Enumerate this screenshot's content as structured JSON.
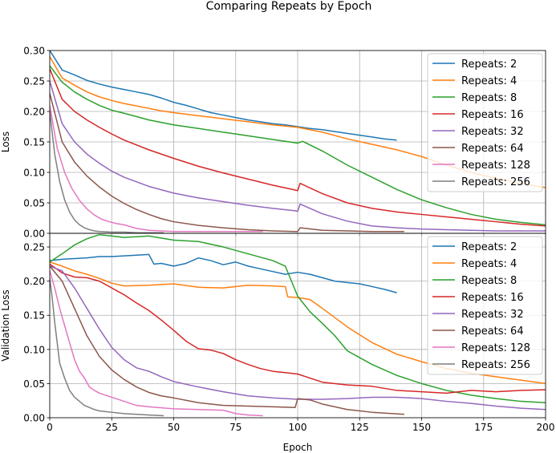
{
  "chart_data": [
    {
      "type": "line",
      "title": "Comparing Repeats by Epoch",
      "xlabel": "",
      "ylabel": "Loss",
      "xlim": [
        0,
        200
      ],
      "ylim": [
        0,
        0.3
      ],
      "xticks": [
        0,
        25,
        50,
        75,
        100,
        125,
        150,
        175,
        200
      ],
      "yticks": [
        0.0,
        0.05,
        0.1,
        0.15,
        0.2,
        0.25,
        0.3
      ],
      "ytick_labels": [
        "0.00",
        "0.05",
        "0.10",
        "0.15",
        "0.20",
        "0.25",
        "0.30"
      ],
      "grid": true,
      "legend_position": "top-right",
      "series": [
        {
          "name": "Repeats: 2",
          "color": "#1f77b4",
          "x": [
            0,
            5,
            10,
            15,
            20,
            25,
            30,
            35,
            40,
            45,
            50,
            55,
            60,
            65,
            70,
            75,
            80,
            85,
            90,
            95,
            100,
            105,
            110,
            115,
            120,
            125,
            130,
            135,
            140
          ],
          "values": [
            0.3,
            0.268,
            0.26,
            0.251,
            0.245,
            0.24,
            0.236,
            0.232,
            0.228,
            0.222,
            0.215,
            0.21,
            0.204,
            0.198,
            0.194,
            0.19,
            0.186,
            0.183,
            0.18,
            0.178,
            0.175,
            0.172,
            0.17,
            0.167,
            0.164,
            0.161,
            0.158,
            0.155,
            0.153
          ]
        },
        {
          "name": "Repeats: 4",
          "color": "#ff7f0e",
          "x": [
            0,
            5,
            10,
            15,
            20,
            25,
            30,
            35,
            40,
            45,
            50,
            60,
            70,
            80,
            90,
            100,
            110,
            120,
            130,
            140,
            150,
            160,
            170,
            180,
            190,
            200
          ],
          "values": [
            0.29,
            0.255,
            0.243,
            0.232,
            0.224,
            0.218,
            0.213,
            0.209,
            0.205,
            0.201,
            0.198,
            0.193,
            0.188,
            0.183,
            0.178,
            0.174,
            0.166,
            0.155,
            0.146,
            0.137,
            0.126,
            0.112,
            0.1,
            0.09,
            0.082,
            0.075
          ]
        },
        {
          "name": "Repeats: 8",
          "color": "#2ca02c",
          "x": [
            0,
            5,
            10,
            15,
            20,
            25,
            30,
            40,
            50,
            60,
            70,
            80,
            90,
            100,
            102,
            110,
            120,
            130,
            140,
            150,
            160,
            170,
            180,
            190,
            200
          ],
          "values": [
            0.275,
            0.248,
            0.232,
            0.22,
            0.21,
            0.202,
            0.197,
            0.186,
            0.178,
            0.172,
            0.166,
            0.16,
            0.154,
            0.148,
            0.151,
            0.135,
            0.112,
            0.092,
            0.072,
            0.055,
            0.042,
            0.031,
            0.023,
            0.018,
            0.014
          ]
        },
        {
          "name": "Repeats: 16",
          "color": "#d62728",
          "x": [
            0,
            5,
            10,
            15,
            20,
            25,
            30,
            40,
            50,
            60,
            70,
            80,
            90,
            99,
            100,
            101,
            110,
            120,
            130,
            140,
            150,
            160,
            170,
            180,
            190,
            200
          ],
          "values": [
            0.27,
            0.22,
            0.2,
            0.186,
            0.174,
            0.163,
            0.153,
            0.137,
            0.123,
            0.11,
            0.099,
            0.089,
            0.079,
            0.071,
            0.07,
            0.082,
            0.065,
            0.05,
            0.041,
            0.035,
            0.031,
            0.027,
            0.023,
            0.019,
            0.015,
            0.012
          ]
        },
        {
          "name": "Repeats: 32",
          "color": "#9467bd",
          "x": [
            0,
            5,
            10,
            15,
            20,
            25,
            30,
            40,
            50,
            60,
            70,
            80,
            90,
            99,
            100,
            101,
            110,
            120,
            130,
            140,
            150,
            160,
            170,
            180,
            190,
            200
          ],
          "values": [
            0.25,
            0.18,
            0.15,
            0.13,
            0.115,
            0.102,
            0.092,
            0.077,
            0.066,
            0.058,
            0.052,
            0.046,
            0.041,
            0.037,
            0.036,
            0.048,
            0.032,
            0.02,
            0.012,
            0.009,
            0.007,
            0.006,
            0.005,
            0.004,
            0.004,
            0.004
          ]
        },
        {
          "name": "Repeats: 64",
          "color": "#8c564b",
          "x": [
            0,
            5,
            10,
            15,
            20,
            25,
            30,
            35,
            40,
            45,
            50,
            60,
            70,
            80,
            90,
            99,
            100,
            101,
            110,
            120,
            130,
            143
          ],
          "values": [
            0.23,
            0.15,
            0.117,
            0.094,
            0.076,
            0.061,
            0.049,
            0.039,
            0.031,
            0.024,
            0.019,
            0.013,
            0.009,
            0.006,
            0.004,
            0.003,
            0.003,
            0.009,
            0.005,
            0.004,
            0.003,
            0.003
          ]
        },
        {
          "name": "Repeats: 128",
          "color": "#e377c2",
          "x": [
            0,
            3,
            6,
            9,
            12,
            15,
            18,
            21,
            24,
            27,
            30,
            35,
            40,
            45,
            50,
            60,
            65,
            70,
            86
          ],
          "values": [
            0.21,
            0.14,
            0.1,
            0.073,
            0.054,
            0.04,
            0.03,
            0.023,
            0.019,
            0.016,
            0.014,
            0.008,
            0.005,
            0.004,
            0.003,
            0.003,
            0.003,
            0.003,
            0.003
          ]
        },
        {
          "name": "Repeats: 256",
          "color": "#7f7f7f",
          "x": [
            0,
            2,
            4,
            6,
            8,
            10,
            12,
            14,
            16,
            18,
            20,
            25,
            30,
            35,
            40,
            46
          ],
          "values": [
            0.2,
            0.13,
            0.085,
            0.055,
            0.035,
            0.022,
            0.014,
            0.009,
            0.006,
            0.004,
            0.003,
            0.002,
            0.002,
            0.001,
            0.001,
            0.001
          ]
        }
      ]
    },
    {
      "type": "line",
      "title": "",
      "xlabel": "Epoch",
      "ylabel": "Validation Loss",
      "xlim": [
        0,
        200
      ],
      "ylim": [
        0,
        0.27
      ],
      "xticks": [
        0,
        25,
        50,
        75,
        100,
        125,
        150,
        175,
        200
      ],
      "yticks": [
        0.0,
        0.05,
        0.1,
        0.15,
        0.2,
        0.25
      ],
      "ytick_labels": [
        "0.00",
        "0.05",
        "0.10",
        "0.15",
        "0.20",
        "0.25"
      ],
      "grid": true,
      "legend_position": "top-right",
      "series": [
        {
          "name": "Repeats: 2",
          "color": "#1f77b4",
          "x": [
            0,
            5,
            10,
            15,
            20,
            25,
            30,
            35,
            40,
            42,
            45,
            50,
            55,
            60,
            65,
            70,
            75,
            80,
            85,
            90,
            95,
            100,
            105,
            110,
            115,
            120,
            125,
            130,
            135,
            140
          ],
          "values": [
            0.23,
            0.232,
            0.233,
            0.234,
            0.236,
            0.236,
            0.237,
            0.238,
            0.239,
            0.225,
            0.226,
            0.222,
            0.226,
            0.234,
            0.23,
            0.224,
            0.228,
            0.222,
            0.218,
            0.214,
            0.21,
            0.213,
            0.21,
            0.205,
            0.2,
            0.198,
            0.196,
            0.192,
            0.188,
            0.183
          ]
        },
        {
          "name": "Repeats: 4",
          "color": "#ff7f0e",
          "x": [
            0,
            5,
            10,
            15,
            20,
            25,
            30,
            40,
            50,
            60,
            70,
            80,
            90,
            95,
            96,
            100,
            105,
            110,
            120,
            130,
            140,
            150,
            160,
            170,
            180,
            190,
            200
          ],
          "values": [
            0.228,
            0.222,
            0.215,
            0.21,
            0.204,
            0.197,
            0.193,
            0.194,
            0.196,
            0.191,
            0.19,
            0.194,
            0.193,
            0.192,
            0.177,
            0.176,
            0.173,
            0.16,
            0.133,
            0.11,
            0.093,
            0.082,
            0.072,
            0.065,
            0.06,
            0.055,
            0.05
          ]
        },
        {
          "name": "Repeats: 8",
          "color": "#2ca02c",
          "x": [
            0,
            5,
            10,
            15,
            20,
            25,
            30,
            40,
            50,
            60,
            70,
            80,
            90,
            95,
            100,
            105,
            110,
            115,
            120,
            130,
            140,
            150,
            160,
            170,
            180,
            190,
            200
          ],
          "values": [
            0.228,
            0.24,
            0.253,
            0.262,
            0.268,
            0.266,
            0.264,
            0.266,
            0.26,
            0.258,
            0.25,
            0.24,
            0.23,
            0.222,
            0.178,
            0.155,
            0.138,
            0.12,
            0.098,
            0.078,
            0.062,
            0.05,
            0.04,
            0.033,
            0.028,
            0.024,
            0.022
          ]
        },
        {
          "name": "Repeats: 16",
          "color": "#d62728",
          "x": [
            0,
            5,
            10,
            15,
            20,
            25,
            30,
            35,
            40,
            45,
            50,
            55,
            60,
            65,
            70,
            75,
            80,
            85,
            90,
            95,
            100,
            110,
            120,
            130,
            140,
            150,
            160,
            170,
            180,
            190,
            200
          ],
          "values": [
            0.225,
            0.212,
            0.206,
            0.205,
            0.2,
            0.19,
            0.18,
            0.168,
            0.157,
            0.143,
            0.128,
            0.112,
            0.101,
            0.099,
            0.094,
            0.085,
            0.078,
            0.072,
            0.068,
            0.066,
            0.064,
            0.052,
            0.048,
            0.046,
            0.04,
            0.038,
            0.036,
            0.04,
            0.038,
            0.04,
            0.041
          ]
        },
        {
          "name": "Repeats: 32",
          "color": "#9467bd",
          "x": [
            0,
            5,
            10,
            15,
            20,
            25,
            30,
            35,
            40,
            45,
            50,
            60,
            70,
            80,
            90,
            100,
            110,
            120,
            130,
            140,
            150,
            160,
            170,
            180,
            190,
            200
          ],
          "values": [
            0.222,
            0.215,
            0.19,
            0.16,
            0.13,
            0.103,
            0.085,
            0.073,
            0.068,
            0.06,
            0.053,
            0.045,
            0.038,
            0.032,
            0.029,
            0.027,
            0.027,
            0.028,
            0.03,
            0.03,
            0.028,
            0.024,
            0.021,
            0.017,
            0.014,
            0.012
          ]
        },
        {
          "name": "Repeats: 64",
          "color": "#8c564b",
          "x": [
            0,
            5,
            10,
            15,
            20,
            25,
            30,
            35,
            40,
            45,
            50,
            60,
            70,
            80,
            90,
            99,
            100,
            105,
            110,
            120,
            130,
            143
          ],
          "values": [
            0.222,
            0.2,
            0.16,
            0.12,
            0.09,
            0.07,
            0.056,
            0.045,
            0.037,
            0.032,
            0.029,
            0.022,
            0.018,
            0.017,
            0.016,
            0.015,
            0.028,
            0.026,
            0.02,
            0.012,
            0.008,
            0.005
          ]
        },
        {
          "name": "Repeats: 128",
          "color": "#e377c2",
          "x": [
            0,
            2,
            4,
            6,
            8,
            10,
            12,
            14,
            16,
            18,
            20,
            25,
            30,
            35,
            40,
            50,
            60,
            70,
            75,
            80,
            86
          ],
          "values": [
            0.215,
            0.19,
            0.16,
            0.135,
            0.11,
            0.085,
            0.068,
            0.058,
            0.045,
            0.04,
            0.036,
            0.03,
            0.024,
            0.018,
            0.016,
            0.013,
            0.012,
            0.011,
            0.006,
            0.004,
            0.003
          ]
        },
        {
          "name": "Repeats: 256",
          "color": "#7f7f7f",
          "x": [
            0,
            1,
            2,
            3,
            4,
            6,
            8,
            10,
            12,
            14,
            16,
            18,
            20,
            25,
            30,
            35,
            40,
            46
          ],
          "values": [
            0.205,
            0.175,
            0.14,
            0.11,
            0.08,
            0.058,
            0.04,
            0.03,
            0.024,
            0.018,
            0.015,
            0.012,
            0.01,
            0.008,
            0.006,
            0.005,
            0.004,
            0.003
          ]
        }
      ]
    }
  ]
}
